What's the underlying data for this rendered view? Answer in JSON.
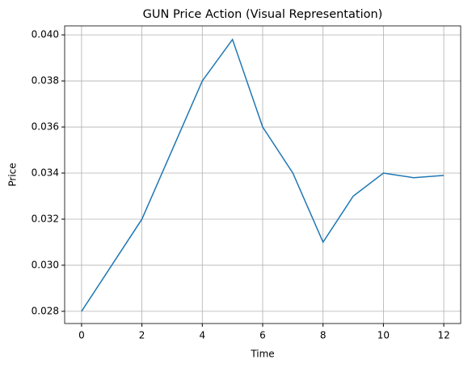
{
  "chart_data": {
    "type": "line",
    "title": "GUN Price Action (Visual Representation)",
    "x_label": "Time",
    "y_label": "Price",
    "x": [
      0,
      1,
      2,
      3,
      4,
      5,
      6,
      7,
      8,
      9,
      10,
      11,
      12
    ],
    "series": [
      {
        "color": "#1f77b4",
        "values": [
          0.028,
          0.03,
          0.032,
          0.035,
          0.038,
          0.0398,
          0.036,
          0.034,
          0.031,
          0.033,
          0.034,
          0.0338,
          0.0339
        ]
      }
    ],
    "xlim": [
      -0.56,
      12.56
    ],
    "xticks": [
      0,
      2,
      4,
      6,
      8,
      10,
      12
    ],
    "ylim": [
      0.02747,
      0.04039
    ],
    "yticks": [
      0.028,
      {
        "value": 0.03,
        "label": "0.030"
      },
      0.032,
      0.034,
      0.036,
      0.038,
      {
        "value": 0.04,
        "label": "0.040"
      }
    ],
    "grid": true
  }
}
